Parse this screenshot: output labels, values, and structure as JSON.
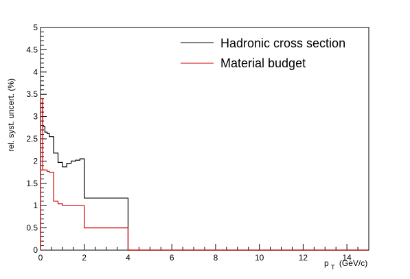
{
  "chart_data": {
    "type": "line",
    "style": "step-histogram",
    "xlabel": "p",
    "xlabel_sub": "T",
    "xlabel_unit": "(GeV/c)",
    "ylabel": "rel. syst. uncert. (%)",
    "xlim": [
      0,
      15
    ],
    "ylim": [
      0,
      5
    ],
    "x_ticks": [
      0,
      2,
      4,
      6,
      8,
      10,
      12,
      14
    ],
    "x_tick_labels": [
      "0",
      "2",
      "4",
      "6",
      "8",
      "10",
      "12",
      "14"
    ],
    "y_ticks": [
      0,
      0.5,
      1,
      1.5,
      2,
      2.5,
      3,
      3.5,
      4,
      4.5,
      5
    ],
    "y_tick_labels": [
      "0",
      "0.5",
      "1",
      "1.5",
      "2",
      "2.5",
      "3",
      "3.5",
      "4",
      "4.5",
      "5"
    ],
    "legend_position": "top-right",
    "bin_edges": [
      0,
      0.1,
      0.2,
      0.3,
      0.4,
      0.5,
      0.6,
      0.7,
      0.8,
      0.9,
      1.0,
      1.1,
      1.2,
      1.3,
      1.4,
      1.6,
      1.8,
      2.0,
      4.0,
      15.0
    ],
    "series": [
      {
        "name": "Hadronic cross section",
        "color": "#000000",
        "values": [
          3.3,
          2.78,
          2.65,
          2.62,
          2.55,
          2.55,
          2.18,
          2.18,
          1.97,
          1.97,
          1.87,
          1.87,
          1.95,
          1.95,
          2.0,
          2.02,
          2.05,
          1.17,
          0
        ]
      },
      {
        "name": "Material budget",
        "color": "#cc0000",
        "values": [
          3.4,
          1.8,
          1.8,
          1.77,
          1.75,
          1.75,
          1.1,
          1.1,
          1.04,
          1.04,
          1.0,
          1.0,
          1.0,
          1.0,
          1.0,
          1.0,
          1.0,
          0.5,
          0
        ]
      }
    ]
  }
}
